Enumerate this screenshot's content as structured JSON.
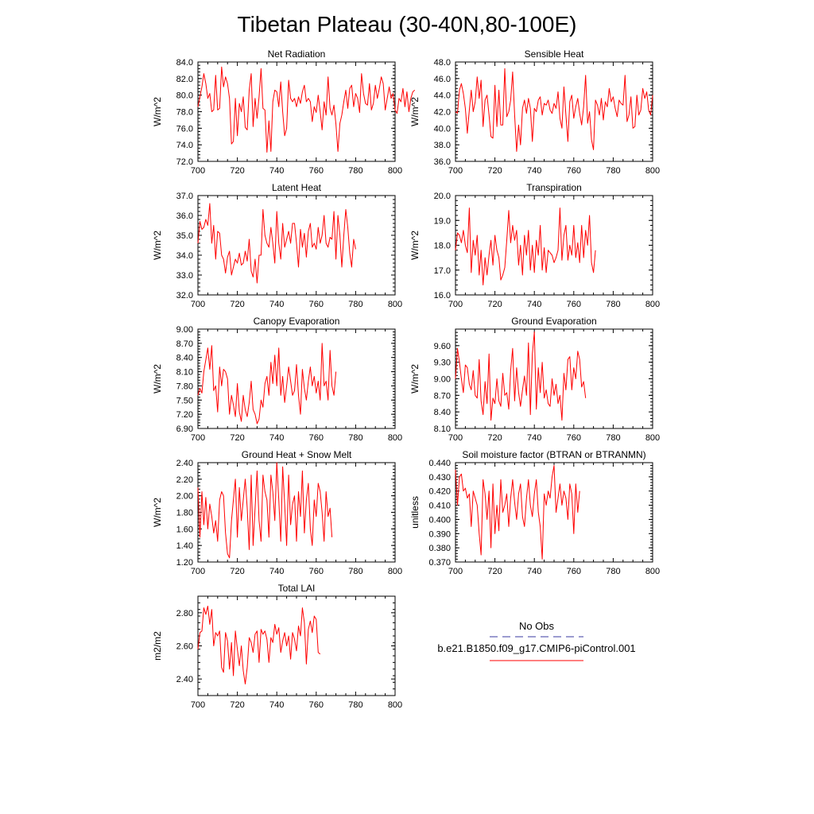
{
  "figure": {
    "title": "Tibetan Plateau (30-40N,80-100E)"
  },
  "legend": {
    "obs_label": "No Obs",
    "model_label": "b.e21.B1850.f09_g17.CMIP6-piControl.001",
    "obs_color": "#3a3aa0",
    "model_color": "#ff0000"
  },
  "chart_data": [
    {
      "type": "line",
      "title": "Net Radiation",
      "ylabel": "W/m^2",
      "xlim": [
        700,
        800
      ],
      "ylim": [
        72,
        84
      ],
      "yticks": [
        72,
        74,
        76,
        78,
        80,
        82,
        84
      ],
      "ytick_labels": [
        "72.0",
        "74.0",
        "76.0",
        "78.0",
        "80.0",
        "82.0",
        "84.0"
      ],
      "xticks": [
        700,
        720,
        740,
        760,
        780,
        800
      ],
      "xtick_labels": [
        "700",
        "720",
        "740",
        "760",
        "780",
        "800"
      ],
      "color": "#ff0000",
      "x_start": 700,
      "values": [
        78.6,
        79.8,
        81.0,
        82.6,
        81.4,
        79.6,
        80.2,
        78.0,
        78.2,
        82.4,
        78.2,
        78.4,
        83.4,
        81.0,
        82.2,
        81.4,
        79.6,
        74.1,
        74.4,
        79.6,
        75.1,
        79.0,
        78.0,
        79.8,
        76.1,
        75.8,
        80.6,
        82.6,
        76.2,
        79.6,
        77.2,
        79.8,
        83.2,
        78.4,
        78.2,
        73.1,
        76.9,
        73.2,
        79.2,
        80.6,
        80.4,
        78.6,
        81.6,
        78.0,
        75.1,
        76.0,
        81.8,
        79.6,
        79.2,
        79.6,
        78.6,
        79.8,
        79.0,
        80.4,
        81.2,
        79.2,
        79.6,
        79.2,
        76.8,
        78.6,
        77.9,
        80.0,
        78.0,
        75.8,
        79.2,
        77.6,
        82.2,
        78.4,
        77.6,
        78.8,
        76.5,
        73.2,
        76.6,
        77.6,
        79.2,
        80.6,
        78.4,
        80.8,
        81.2,
        78.6,
        80.2,
        79.6,
        77.9,
        82.6,
        80.2,
        79.0,
        78.8,
        81.4,
        78.2,
        79.0,
        81.2,
        79.6,
        80.8,
        82.2,
        81.4,
        78.2,
        79.6,
        81.0,
        79.6,
        80.2,
        78.2,
        77.8,
        79.6,
        79.2,
        80.8,
        78.6,
        80.4,
        78.0,
        79.6,
        80.4,
        80.6
      ]
    },
    {
      "type": "line",
      "title": "Sensible Heat",
      "ylabel": "W/m^2",
      "xlim": [
        700,
        800
      ],
      "ylim": [
        36,
        48
      ],
      "yticks": [
        36,
        38,
        40,
        42,
        44,
        46,
        48
      ],
      "ytick_labels": [
        "36.0",
        "38.0",
        "40.0",
        "42.0",
        "44.0",
        "46.0",
        "48.0"
      ],
      "xticks": [
        700,
        720,
        740,
        760,
        780,
        800
      ],
      "xtick_labels": [
        "700",
        "720",
        "740",
        "760",
        "780",
        "800"
      ],
      "color": "#ff0000",
      "x_start": 700,
      "values": [
        42.0,
        41.8,
        44.6,
        45.4,
        44.2,
        42.4,
        39.4,
        42.2,
        44.6,
        42.0,
        43.2,
        46.2,
        43.6,
        45.8,
        40.2,
        43.4,
        44.0,
        41.6,
        39.0,
        38.8,
        45.2,
        40.2,
        44.6,
        40.4,
        40.4,
        47.2,
        41.4,
        42.0,
        43.4,
        46.8,
        41.6,
        37.2,
        40.4,
        38.0,
        42.4,
        43.4,
        41.8,
        43.6,
        42.4,
        38.4,
        42.4,
        42.0,
        43.4,
        43.8,
        41.6,
        43.0,
        42.8,
        43.4,
        42.2,
        41.8,
        43.0,
        42.4,
        44.4,
        41.2,
        40.0,
        45.0,
        41.6,
        38.4,
        43.2,
        44.0,
        41.2,
        42.6,
        43.6,
        41.8,
        40.4,
        42.6,
        46.4,
        40.6,
        42.0,
        38.6,
        37.4,
        43.4,
        42.8,
        41.6,
        43.6,
        41.0,
        43.2,
        42.6,
        44.8,
        43.2,
        43.8,
        42.4,
        41.4,
        43.4,
        43.0,
        42.8,
        46.4,
        40.8,
        41.6,
        43.8,
        40.0,
        40.2,
        44.0,
        41.6,
        42.2,
        44.8,
        43.6,
        44.4,
        42.2,
        41.6,
        44.0
      ]
    },
    {
      "type": "line",
      "title": "Latent Heat",
      "ylabel": "W/m^2",
      "xlim": [
        700,
        800
      ],
      "ylim": [
        32,
        37
      ],
      "yticks": [
        32,
        33,
        34,
        35,
        36,
        37
      ],
      "ytick_labels": [
        "32.0",
        "33.0",
        "34.0",
        "35.0",
        "36.0",
        "37.0"
      ],
      "xticks": [
        700,
        720,
        740,
        760,
        780,
        800
      ],
      "xtick_labels": [
        "700",
        "720",
        "740",
        "760",
        "780",
        "800"
      ],
      "color": "#ff0000",
      "x_start": 700,
      "values": [
        34.6,
        35.7,
        35.3,
        35.4,
        35.8,
        35.5,
        36.6,
        34.6,
        35.5,
        33.8,
        35.2,
        35.1,
        34.0,
        33.8,
        33.1,
        33.9,
        34.2,
        33.0,
        33.4,
        33.8,
        33.6,
        34.1,
        33.5,
        33.6,
        34.2,
        33.7,
        34.8,
        33.2,
        32.9,
        33.8,
        32.6,
        34.0,
        34.0,
        36.3,
        35.0,
        34.6,
        34.4,
        35.4,
        34.6,
        33.6,
        36.2,
        34.6,
        33.8,
        35.6,
        34.4,
        34.8,
        35.2,
        34.6,
        35.6,
        35.6,
        34.6,
        33.4,
        35.3,
        34.4,
        35.1,
        33.9,
        35.2,
        35.6,
        34.4,
        34.6,
        34.3,
        35.4,
        34.6,
        35.0,
        36.0,
        34.6,
        34.4,
        34.9,
        34.8,
        36.2,
        33.8,
        36.0,
        35.0,
        33.4,
        35.0,
        36.3,
        35.4,
        34.1,
        33.4,
        34.8,
        34.3
      ]
    },
    {
      "type": "line",
      "title": "Transpiration",
      "ylabel": "W/m^2",
      "xlim": [
        700,
        800
      ],
      "ylim": [
        16,
        20
      ],
      "yticks": [
        16,
        17,
        18,
        19,
        20
      ],
      "ytick_labels": [
        "16.0",
        "17.0",
        "18.0",
        "19.0",
        "20.0"
      ],
      "xticks": [
        700,
        720,
        740,
        760,
        780,
        800
      ],
      "xtick_labels": [
        "700",
        "720",
        "740",
        "760",
        "780",
        "800"
      ],
      "color": "#ff0000",
      "x_start": 700,
      "values": [
        17.8,
        18.5,
        18.4,
        18.1,
        18.6,
        18.0,
        17.7,
        19.5,
        16.9,
        18.2,
        17.6,
        18.4,
        16.8,
        17.8,
        16.4,
        17.5,
        16.8,
        17.6,
        18.2,
        17.2,
        18.4,
        17.8,
        17.5,
        16.6,
        16.8,
        17.1,
        18.2,
        19.4,
        18.1,
        18.8,
        18.2,
        18.6,
        17.2,
        18.0,
        16.8,
        18.4,
        17.6,
        18.6,
        17.0,
        18.0,
        16.9,
        18.2,
        17.6,
        18.8,
        17.0,
        17.9,
        16.9,
        17.8,
        17.7,
        17.6,
        17.3,
        17.5,
        17.8,
        19.5,
        17.4,
        18.4,
        18.8,
        17.4,
        18.0,
        17.6,
        18.8,
        17.5,
        18.1,
        17.3,
        18.8,
        17.5,
        18.6,
        18.0,
        19.2,
        17.3,
        16.9,
        17.8
      ]
    },
    {
      "type": "line",
      "title": "Canopy Evaporation",
      "ylabel": "W/m^2",
      "xlim": [
        700,
        800
      ],
      "ylim": [
        6.9,
        9.0
      ],
      "yticks": [
        6.9,
        7.2,
        7.5,
        7.8,
        8.1,
        8.4,
        8.7,
        9.0
      ],
      "ytick_labels": [
        "6.90",
        "7.20",
        "7.50",
        "7.80",
        "8.10",
        "8.40",
        "8.70",
        "9.00"
      ],
      "xticks": [
        700,
        720,
        740,
        760,
        780,
        800
      ],
      "xtick_labels": [
        "700",
        "720",
        "740",
        "760",
        "780",
        "800"
      ],
      "color": "#ff0000",
      "x_start": 700,
      "values": [
        7.6,
        7.75,
        7.65,
        8.1,
        8.35,
        8.6,
        8.15,
        8.65,
        7.7,
        7.8,
        7.25,
        8.2,
        7.8,
        8.15,
        8.1,
        7.95,
        7.2,
        7.6,
        7.4,
        7.15,
        7.85,
        7.25,
        7.05,
        7.6,
        7.3,
        7.15,
        7.45,
        7.9,
        7.3,
        7.2,
        7.0,
        7.1,
        7.5,
        7.35,
        7.85,
        8.0,
        7.6,
        8.3,
        7.85,
        8.45,
        7.8,
        8.6,
        7.6,
        8.0,
        7.45,
        7.8,
        8.2,
        7.9,
        7.6,
        7.7,
        8.25,
        7.6,
        7.2,
        8.15,
        7.75,
        7.5,
        7.9,
        8.2,
        7.8,
        8.0,
        7.65,
        7.9,
        7.5,
        8.7,
        7.8,
        7.9,
        7.5,
        8.55,
        7.8,
        7.6,
        8.1
      ]
    },
    {
      "type": "line",
      "title": "Ground Evaporation",
      "ylabel": "W/m^2",
      "xlim": [
        700,
        800
      ],
      "ylim": [
        8.1,
        9.9
      ],
      "yticks": [
        8.1,
        8.4,
        8.7,
        9.0,
        9.3,
        9.6
      ],
      "ytick_labels": [
        "8.10",
        "8.40",
        "8.70",
        "9.00",
        "9.30",
        "9.60"
      ],
      "xticks": [
        700,
        720,
        740,
        760,
        780,
        800
      ],
      "xtick_labels": [
        "700",
        "720",
        "740",
        "760",
        "780",
        "800"
      ],
      "color": "#ff0000",
      "x_start": 700,
      "values": [
        9.0,
        9.55,
        9.3,
        9.0,
        8.75,
        9.25,
        9.2,
        8.9,
        8.8,
        9.15,
        8.7,
        8.65,
        9.35,
        8.6,
        8.35,
        8.95,
        8.55,
        9.45,
        8.25,
        8.65,
        8.55,
        9.0,
        8.6,
        8.5,
        9.1,
        8.7,
        8.75,
        8.45,
        9.15,
        9.55,
        8.6,
        9.2,
        8.75,
        8.5,
        8.8,
        9.05,
        8.7,
        9.65,
        8.35,
        9.45,
        9.85,
        8.45,
        9.2,
        8.75,
        9.3,
        8.65,
        8.8,
        8.55,
        8.5,
        9.0,
        8.7,
        8.9,
        8.55,
        8.7,
        8.25,
        9.1,
        8.8,
        9.35,
        9.4,
        8.8,
        9.2,
        9.0,
        9.5,
        9.35,
        8.85,
        8.95,
        8.65
      ]
    },
    {
      "type": "line",
      "title": "Ground Heat + Snow Melt",
      "ylabel": "W/m^2",
      "xlim": [
        700,
        800
      ],
      "ylim": [
        1.2,
        2.4
      ],
      "yticks": [
        1.2,
        1.4,
        1.6,
        1.8,
        2.0,
        2.2,
        2.4
      ],
      "ytick_labels": [
        "1.20",
        "1.40",
        "1.60",
        "1.80",
        "2.00",
        "2.20",
        "2.40"
      ],
      "xticks": [
        700,
        720,
        740,
        760,
        780,
        800
      ],
      "xtick_labels": [
        "700",
        "720",
        "740",
        "760",
        "780",
        "800"
      ],
      "color": "#ff0000",
      "x_start": 700,
      "values": [
        2.1,
        1.5,
        2.05,
        1.65,
        1.98,
        1.6,
        1.9,
        1.75,
        1.55,
        1.7,
        1.45,
        1.95,
        2.05,
        2.0,
        1.55,
        1.3,
        1.25,
        1.7,
        1.95,
        2.2,
        1.5,
        2.1,
        1.7,
        1.95,
        2.2,
        1.85,
        1.35,
        2.25,
        1.4,
        1.85,
        2.3,
        1.7,
        1.45,
        2.25,
        2.05,
        1.95,
        1.5,
        2.25,
        2.05,
        1.7,
        2.4,
        1.95,
        1.45,
        2.35,
        1.9,
        1.4,
        2.25,
        1.65,
        1.9,
        2.0,
        1.45,
        2.05,
        1.75,
        2.3,
        1.55,
        1.95,
        2.15,
        1.6,
        1.4,
        1.95,
        1.75,
        2.15,
        2.05,
        1.8,
        1.45,
        2.05,
        1.75,
        1.85,
        1.5
      ]
    },
    {
      "type": "line",
      "title": "Soil moisture factor (BTRAN or BTRANMN)",
      "ylabel": "unitless",
      "xlim": [
        700,
        800
      ],
      "ylim": [
        0.37,
        0.44
      ],
      "yticks": [
        0.37,
        0.38,
        0.39,
        0.4,
        0.41,
        0.42,
        0.43,
        0.44
      ],
      "ytick_labels": [
        "0.370",
        "0.380",
        "0.390",
        "0.400",
        "0.410",
        "0.420",
        "0.430",
        "0.440"
      ],
      "xticks": [
        700,
        720,
        740,
        760,
        780,
        800
      ],
      "xtick_labels": [
        "700",
        "720",
        "740",
        "760",
        "780",
        "800"
      ],
      "color": "#ff0000",
      "x_start": 700,
      "values": [
        0.435,
        0.41,
        0.43,
        0.432,
        0.42,
        0.422,
        0.415,
        0.418,
        0.395,
        0.42,
        0.415,
        0.41,
        0.39,
        0.375,
        0.428,
        0.418,
        0.4,
        0.42,
        0.38,
        0.425,
        0.39,
        0.41,
        0.392,
        0.428,
        0.405,
        0.41,
        0.418,
        0.395,
        0.415,
        0.428,
        0.412,
        0.4,
        0.418,
        0.425,
        0.402,
        0.395,
        0.415,
        0.428,
        0.41,
        0.402,
        0.418,
        0.428,
        0.405,
        0.395,
        0.372,
        0.418,
        0.41,
        0.42,
        0.415,
        0.43,
        0.438,
        0.405,
        0.415,
        0.425,
        0.41,
        0.42,
        0.415,
        0.4,
        0.425,
        0.418,
        0.39,
        0.425,
        0.405,
        0.42
      ]
    },
    {
      "type": "line",
      "title": "Total LAI",
      "ylabel": "m2/m2",
      "xlim": [
        700,
        800
      ],
      "ylim": [
        2.3,
        2.9
      ],
      "yticks": [
        2.4,
        2.6,
        2.8
      ],
      "ytick_labels": [
        "2.40",
        "2.60",
        "2.80"
      ],
      "xticks": [
        700,
        720,
        740,
        760,
        780,
        800
      ],
      "xtick_labels": [
        "700",
        "720",
        "740",
        "760",
        "780",
        "800"
      ],
      "color": "#ff0000",
      "x_start": 700,
      "values": [
        2.58,
        2.68,
        2.69,
        2.83,
        2.79,
        2.84,
        2.73,
        2.82,
        2.6,
        2.68,
        2.66,
        2.69,
        2.47,
        2.44,
        2.68,
        2.63,
        2.46,
        2.62,
        2.42,
        2.69,
        2.58,
        2.48,
        2.6,
        2.45,
        2.37,
        2.47,
        2.65,
        2.62,
        2.56,
        2.67,
        2.69,
        2.5,
        2.7,
        2.67,
        2.69,
        2.64,
        2.5,
        2.65,
        2.62,
        2.73,
        2.67,
        2.71,
        2.56,
        2.63,
        2.68,
        2.6,
        2.66,
        2.52,
        2.68,
        2.64,
        2.57,
        2.72,
        2.66,
        2.83,
        2.74,
        2.49,
        2.7,
        2.75,
        2.68,
        2.78,
        2.76,
        2.56,
        2.55
      ]
    }
  ]
}
